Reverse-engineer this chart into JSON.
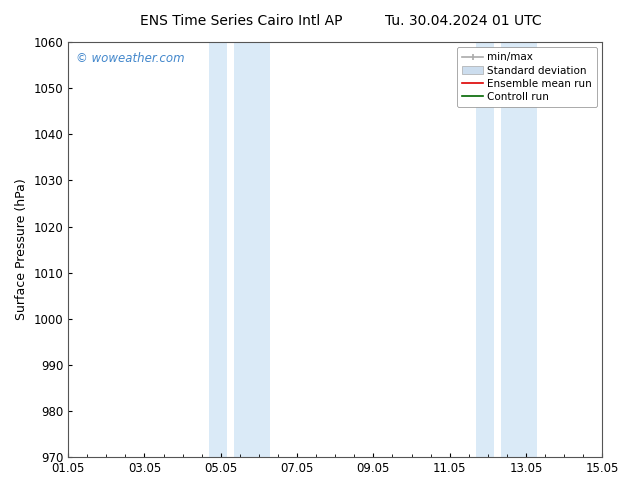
{
  "title_left": "ENS Time Series Cairo Intl AP",
  "title_right": "Tu. 30.04.2024 01 UTC",
  "ylabel": "Surface Pressure (hPa)",
  "xlim": [
    0,
    14
  ],
  "ylim": [
    970,
    1060
  ],
  "yticks": [
    970,
    980,
    990,
    1000,
    1010,
    1020,
    1030,
    1040,
    1050,
    1060
  ],
  "xtick_labels": [
    "01.05",
    "03.05",
    "05.05",
    "07.05",
    "09.05",
    "11.05",
    "13.05",
    "15.05"
  ],
  "xtick_positions": [
    0,
    2,
    4,
    6,
    8,
    10,
    12,
    14
  ],
  "shaded_bands": [
    {
      "x_start": 3.7,
      "x_end": 4.3,
      "x_start2": 4.5,
      "x_end2": 5.3
    },
    {
      "x_start": 10.7,
      "x_end": 11.3,
      "x_start2": 11.5,
      "x_end2": 12.3
    }
  ],
  "shaded_color": "#daeaf7",
  "watermark_text": "© woweather.com",
  "watermark_color": "#4488cc",
  "legend_items": [
    {
      "label": "min/max"
    },
    {
      "label": "Standard deviation"
    },
    {
      "label": "Ensemble mean run"
    },
    {
      "label": "Controll run"
    }
  ],
  "background_color": "#ffffff",
  "title_fontsize": 10,
  "axis_label_fontsize": 9,
  "tick_fontsize": 8.5
}
